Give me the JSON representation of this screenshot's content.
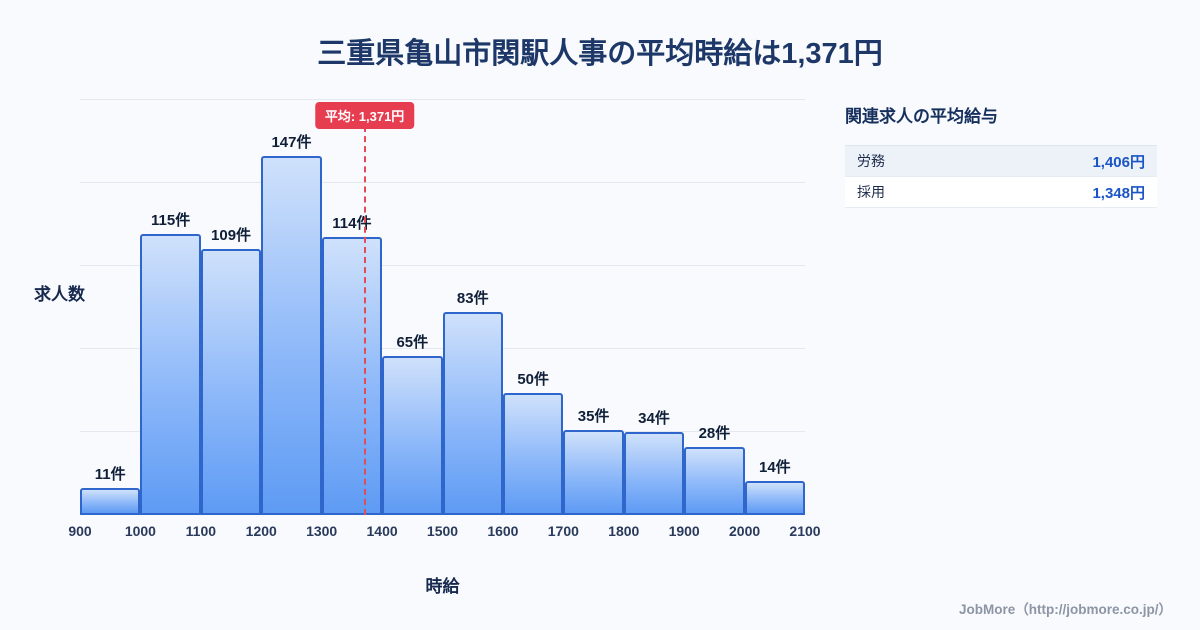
{
  "chart_data": {
    "type": "bar",
    "title": "三重県亀山市関駅人事の平均時給は1,371円",
    "xlabel": "時給",
    "ylabel": "求人数",
    "bin_edges": [
      900,
      1000,
      1100,
      1200,
      1300,
      1400,
      1500,
      1600,
      1700,
      1800,
      1900,
      2000,
      2100
    ],
    "values": [
      11,
      115,
      109,
      147,
      114,
      65,
      83,
      50,
      35,
      34,
      28,
      14
    ],
    "bar_labels": [
      "11件",
      "115件",
      "109件",
      "147件",
      "114件",
      "65件",
      "83件",
      "50件",
      "35件",
      "34件",
      "28件",
      "14件"
    ],
    "x_range": [
      900,
      2100
    ],
    "ylim": [
      0,
      170
    ],
    "grid": "horizontal",
    "legend": "none",
    "average": {
      "value": 1371,
      "label": "平均: 1,371円"
    },
    "colors": {
      "bar_fill_top": "#cfe1fb",
      "bar_fill_bottom": "#5e9bf4",
      "bar_border": "#2e66cc",
      "average_line": "#e34b57",
      "average_badge_bg": "#e63d50",
      "title_text": "#1d3868",
      "background": "#f8fafd"
    }
  },
  "side_panel": {
    "heading": "関連求人の平均給与",
    "rows": [
      {
        "label": "労務",
        "value": "1,406円"
      },
      {
        "label": "採用",
        "value": "1,348円"
      }
    ]
  },
  "footer": {
    "attribution": "JobMore（http://jobmore.co.jp/）"
  }
}
